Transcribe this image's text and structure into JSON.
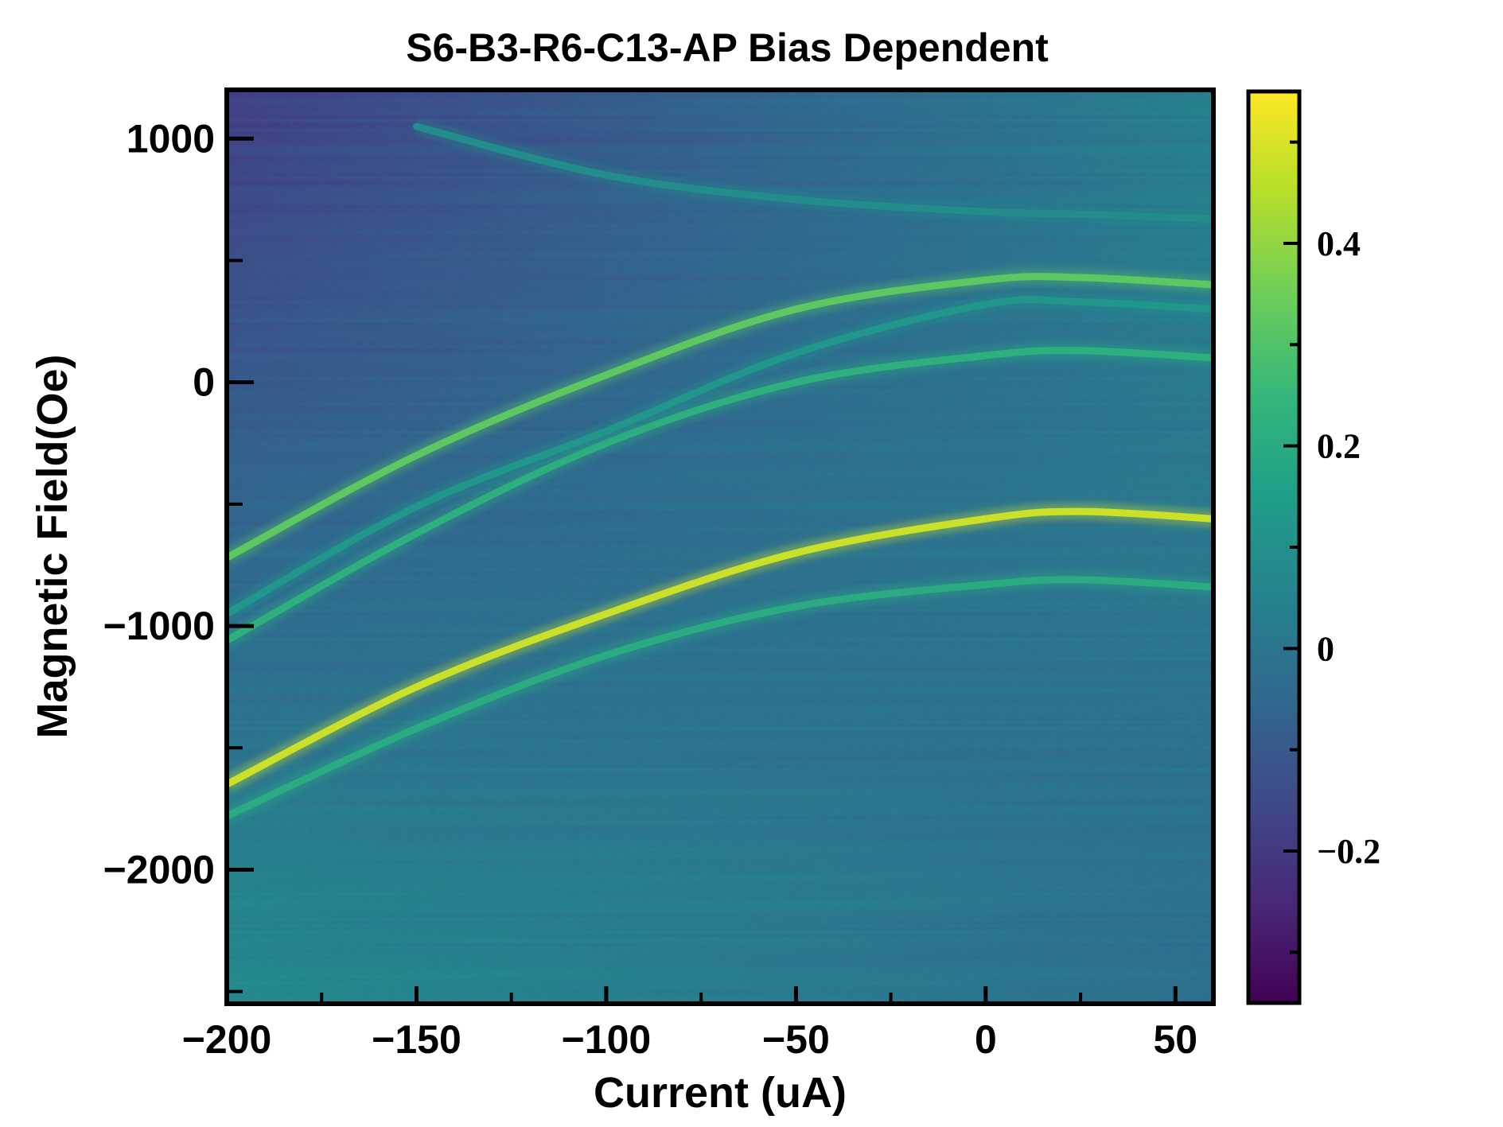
{
  "chart_data": {
    "type": "heatmap",
    "title": "S6-B3-R6-C13-AP Bias Dependent",
    "xlabel": "Current (uA)",
    "ylabel": "Magnetic Field(Oe)",
    "xlim": [
      -200,
      60
    ],
    "ylim": [
      -2550,
      1200
    ],
    "x_ticks": [
      -200,
      -150,
      -100,
      -50,
      0,
      50
    ],
    "x_tick_labels": [
      "−200",
      "−150",
      "−100",
      "−50",
      "0",
      "50"
    ],
    "y_ticks": [
      -2000,
      -1000,
      0,
      1000
    ],
    "y_tick_labels": [
      "−2000",
      "−1000",
      "0",
      "1000"
    ],
    "colorbar": {
      "colormap": "viridis",
      "range": [
        -0.35,
        0.55
      ],
      "ticks": [
        -0.2,
        0,
        0.2,
        0.4
      ],
      "tick_labels": [
        "−0.2",
        "0",
        "0.2",
        "0.4"
      ]
    },
    "resonance_lines": [
      {
        "name": "",
        "x": [
          -200,
          -150,
          -100,
          -50,
          0,
          25,
          60
        ],
        "y": [
          -720,
          -300,
          30,
          300,
          420,
          430,
          400
        ],
        "intensity": 0.32
      },
      {
        "name": "",
        "x": [
          -200,
          -150,
          -100,
          -50,
          0,
          25,
          60
        ],
        "y": [
          -1060,
          -620,
          -250,
          0,
          110,
          130,
          100
        ],
        "intensity": 0.22
      },
      {
        "name": "",
        "x": [
          -200,
          -150,
          -100,
          -50,
          0,
          25,
          60
        ],
        "y": [
          -950,
          -510,
          -200,
          120,
          320,
          330,
          300
        ],
        "intensity": 0.12
      },
      {
        "name": "",
        "x": [
          -200,
          -150,
          -100,
          -50,
          0,
          25,
          60
        ],
        "y": [
          -1650,
          -1250,
          -950,
          -700,
          -560,
          -530,
          -560
        ],
        "intensity": 0.48
      },
      {
        "name": "",
        "x": [
          -200,
          -150,
          -100,
          -50,
          0,
          25,
          60
        ],
        "y": [
          -1780,
          -1420,
          -1120,
          -920,
          -830,
          -810,
          -840
        ],
        "intensity": 0.2
      },
      {
        "name": "",
        "x": [
          -150,
          -100,
          -50,
          0,
          25,
          60
        ],
        "y": [
          1050,
          850,
          750,
          700,
          690,
          670
        ],
        "intensity": 0.09
      }
    ],
    "background": {
      "upper_left": -0.18,
      "lower_left": 0.08,
      "lower_right": -0.02,
      "upper_right": 0.04
    }
  }
}
